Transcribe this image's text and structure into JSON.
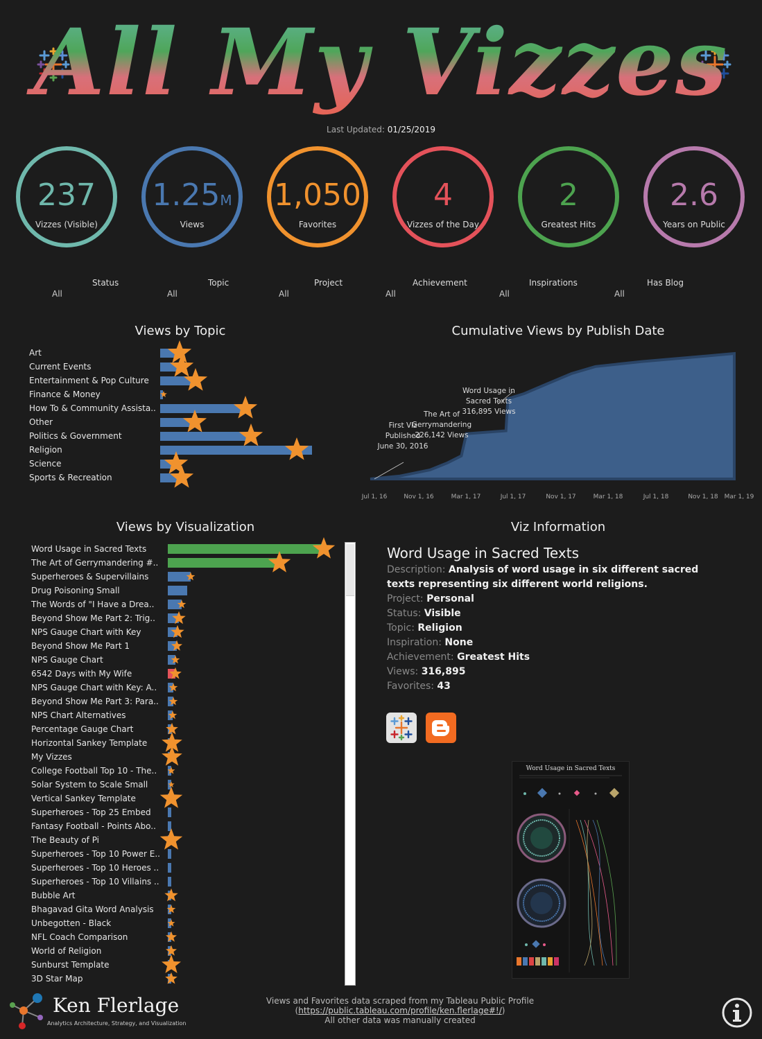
{
  "header": {
    "title": "All My Vizzes",
    "updated_label": "Last Updated:",
    "updated_value": "01/25/2019"
  },
  "kpis": [
    {
      "value": "237",
      "suffix": "",
      "label": "Vizzes (Visible)",
      "color": "#6fb8ac"
    },
    {
      "value": "1.25",
      "suffix": "M",
      "label": "Views",
      "color": "#4a78b0"
    },
    {
      "value": "1,050",
      "suffix": "",
      "label": "Favorites",
      "color": "#f0922e"
    },
    {
      "value": "4",
      "suffix": "",
      "label": "Vizzes of the Day",
      "color": "#e4525a"
    },
    {
      "value": "2",
      "suffix": "",
      "label": "Greatest Hits",
      "color": "#4da34f"
    },
    {
      "value": "2.6",
      "suffix": "",
      "label": "Years on Public",
      "color": "#b77aac"
    }
  ],
  "filters": [
    {
      "label": "Status",
      "value": "All"
    },
    {
      "label": "Topic",
      "value": "All"
    },
    {
      "label": "Project",
      "value": "All"
    },
    {
      "label": "Achievement",
      "value": "All"
    },
    {
      "label": "Inspirations",
      "value": "All"
    },
    {
      "label": "Has Blog",
      "value": "All"
    }
  ],
  "chart_data": [
    {
      "type": "bar",
      "title": "Views by Topic",
      "categories": [
        "Art",
        "Current Events",
        "Entertainment & Pop Culture",
        "Finance & Money",
        "How To & Community Assista..",
        "Other",
        "Politics & Government",
        "Religion",
        "Science",
        "Sports & Recreation"
      ],
      "values": [
        32,
        37,
        58,
        4,
        142,
        55,
        148,
        238,
        24,
        33
      ],
      "favorites": [
        30,
        34,
        55,
        5,
        134,
        54,
        142,
        214,
        25,
        34
      ]
    },
    {
      "type": "area",
      "title": "Cumulative Views by Publish Date",
      "x_ticks": [
        "Jul 1, 16",
        "Nov 1, 16",
        "Mar 1, 17",
        "Jul 1, 17",
        "Nov 1, 17",
        "Mar 1, 18",
        "Jul 1, 18",
        "Nov 1, 18",
        "Mar 1, 19"
      ],
      "x": [
        "2016-06-30",
        "2016-09-15",
        "2016-12-01",
        "2017-01-15",
        "2017-02-20",
        "2017-03-05",
        "2017-06-15",
        "2017-06-20",
        "2017-08-01",
        "2017-10-01",
        "2017-12-01",
        "2018-02-01",
        "2018-06-01",
        "2018-10-01",
        "2019-01-25"
      ],
      "values": [
        0,
        30,
        90,
        160,
        230,
        450,
        480,
        800,
        850,
        950,
        1050,
        1120,
        1170,
        1210,
        1250
      ],
      "annotations": [
        {
          "text_lines": [
            "First Viz",
            "Published",
            "June 30, 2016"
          ]
        },
        {
          "text_lines": [
            "The Art of",
            "Gerrymandering",
            "226,142 Views"
          ]
        },
        {
          "text_lines": [
            "Word Usage in",
            "Sacred Texts",
            "316,895 Views"
          ]
        }
      ]
    },
    {
      "type": "bar",
      "title": "Views by Visualization",
      "categories": [
        "Word Usage in Sacred Texts",
        "The Art of Gerrymandering  #..",
        "Superheroes & Supervillains",
        "Drug Poisoning Small",
        "The Words of  \"I Have a Drea..",
        "Beyond Show Me Part 2: Trig..",
        "NPS Gauge Chart  with Key",
        "Beyond Show Me Part 1",
        "NPS Gauge Chart",
        "6542 Days with My Wife",
        "NPS Gauge Chart with Key: A..",
        "Beyond Show Me Part 3: Para..",
        "NPS Chart Alternatives",
        "Percentage Gauge Chart",
        "Horizontal Sankey Template",
        "My Vizzes",
        "College Football Top 10 - The..",
        "Solar System to  Scale Small",
        "Vertical Sankey Template",
        "Superheroes - Top 25 Embed",
        "Fantasy Football - Points Abo..",
        "The Beauty of Pi",
        "Superheroes - Top 10 Power E..",
        "Superheroes - Top 10 Heroes ..",
        "Superheroes - Top 10 Villains ..",
        "Bubble Art",
        "Bhagavad Gita  Word Analysis",
        "Unbegotten - Black",
        "NFL Coach Comparison",
        "World of Religion",
        "Sunburst Template",
        "3D Star Map"
      ],
      "values": [
        316895,
        226142,
        47000,
        39000,
        28000,
        22000,
        20000,
        18000,
        16000,
        15000,
        11000,
        11000,
        10000,
        9000,
        8500,
        8000,
        7500,
        7000,
        6500,
        6000,
        5500,
        5200,
        5000,
        4800,
        4600,
        4400,
        4200,
        4000,
        3800,
        3600,
        3400,
        3200
      ],
      "favorites": [
        43,
        30,
        4,
        0,
        4,
        8,
        8,
        6,
        4,
        7,
        4,
        4,
        4,
        7,
        14,
        14,
        3,
        2,
        16,
        0,
        0,
        17,
        0,
        0,
        0,
        8,
        4,
        3,
        6,
        6,
        13,
        7
      ],
      "highlight": [
        1,
        1,
        0,
        0,
        0,
        0,
        0,
        0,
        0,
        2,
        0,
        0,
        0,
        0,
        0,
        0,
        0,
        0,
        0,
        0,
        0,
        0,
        0,
        0,
        0,
        0,
        0,
        0,
        0,
        0,
        0,
        0
      ]
    }
  ],
  "sections": {
    "topic_title": "Views by Topic",
    "cumulative_title": "Cumulative Views by Publish Date",
    "viz_title": "Views by Visualization",
    "info_title": "Viz Information"
  },
  "info": {
    "name": "Word Usage in Sacred Texts",
    "rows": [
      {
        "label": "Description:",
        "value": "Analysis of word usage in six different sacred texts representing six different world religions."
      },
      {
        "label": "Project:",
        "value": "Personal"
      },
      {
        "label": "Status:",
        "value": "Visible"
      },
      {
        "label": "Topic:",
        "value": "Religion"
      },
      {
        "label": "Inspiration:",
        "value": "None"
      },
      {
        "label": "Achievement:",
        "value": "Greatest Hits"
      },
      {
        "label": "Views:",
        "value": "316,895"
      },
      {
        "label": "Favorites:",
        "value": "43"
      }
    ],
    "thumb_title": "Word Usage in Sacred Texts"
  },
  "footer": {
    "brand_name": "Ken Flerlage",
    "brand_tagline": "Analytics Architecture, Strategy, and Visualization",
    "line1": "Views and Favorites data scraped from my Tableau Public Profile",
    "link_open": "(",
    "link": "https://public.tableau.com/profile/ken.flerlage#!/",
    "link_close": ")",
    "line3": "All other data was manually created"
  },
  "colors": {
    "bar_blue": "#4a78b0",
    "bar_green": "#4da34f",
    "bar_red": "#e4525a",
    "star_orange": "#f0922e",
    "area_fill": "#3d5f8a",
    "area_line": "#2a4466"
  }
}
